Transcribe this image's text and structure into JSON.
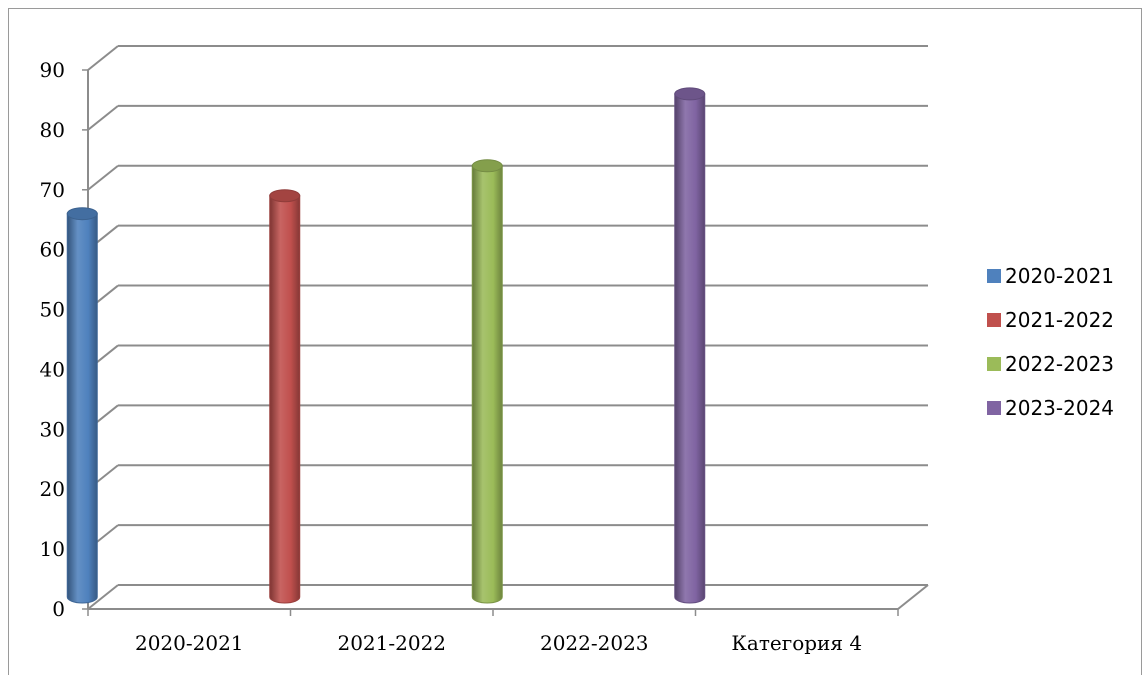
{
  "chart_data": {
    "type": "bar",
    "title": "",
    "xlabel": "",
    "ylabel": "",
    "categories": [
      "2020-2021",
      "2021-2022",
      "2022-2023",
      "Категория 4"
    ],
    "series": [
      {
        "name": "2020-2021",
        "color": "#4f81bd",
        "values": [
          64,
          0,
          0,
          0
        ]
      },
      {
        "name": "2021-2022",
        "color": "#c0504d",
        "values": [
          0,
          67,
          0,
          0
        ]
      },
      {
        "name": "2022-2023",
        "color": "#9bbb59",
        "values": [
          0,
          0,
          72,
          0
        ]
      },
      {
        "name": "2023-2024",
        "color": "#8064a2",
        "values": [
          0,
          0,
          0,
          84
        ]
      }
    ],
    "ylim": [
      0,
      90
    ],
    "y_ticks": [
      "0",
      "10",
      "20",
      "30",
      "40",
      "50",
      "60",
      "70",
      "80",
      "90"
    ],
    "grid": true,
    "legend_position": "right",
    "style": "3d-cylinder"
  }
}
